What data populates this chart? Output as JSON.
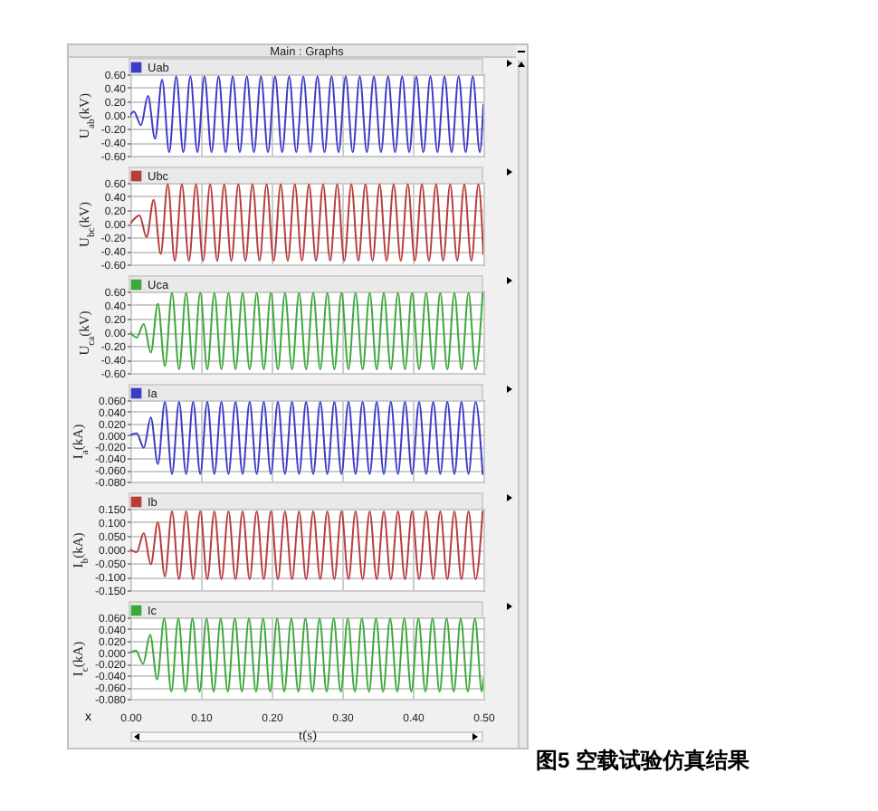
{
  "chart_data": [
    {
      "type": "line",
      "title": "Main : Graphs",
      "ylabel": "U$_{ab}$(kV)",
      "x": [
        0,
        0.005,
        0.015,
        0.025,
        0.035,
        0.045,
        0.055,
        0.065,
        0.075,
        0.085,
        0.095,
        0.105,
        0.115,
        0.125,
        0.135,
        0.145,
        0.155,
        0.165,
        0.175,
        0.185,
        0.195,
        0.205,
        0.215,
        0.225,
        0.235,
        0.245,
        0.255,
        0.265,
        0.275,
        0.285,
        0.295,
        0.305,
        0.315,
        0.325,
        0.335,
        0.345,
        0.355,
        0.365,
        0.375,
        0.385,
        0.395,
        0.405,
        0.415,
        0.425,
        0.435,
        0.445,
        0.455,
        0.465,
        0.475,
        0.485,
        0.495,
        0.5
      ],
      "series": [
        {
          "name": "Uab",
          "color": "#3c3cc8",
          "values": [
            0,
            0.05,
            -0.15,
            0.28,
            -0.35,
            0.52,
            -0.55,
            0.57,
            -0.55,
            0.57,
            -0.55,
            0.57,
            -0.55,
            0.57,
            -0.55,
            0.57,
            -0.55,
            0.57,
            -0.55,
            0.57,
            -0.55,
            0.57,
            -0.55,
            0.57,
            -0.55,
            0.57,
            -0.55,
            0.57,
            -0.55,
            0.57,
            -0.55,
            0.57,
            -0.55,
            0.57,
            -0.55,
            0.57,
            -0.55,
            0.57,
            -0.55,
            0.57,
            -0.55,
            0.57,
            -0.55,
            0.57,
            -0.55,
            0.57,
            -0.55,
            0.57,
            -0.55,
            0.57,
            -0.55,
            0.15
          ]
        }
      ],
      "xlim": [
        0,
        0.5
      ],
      "xticks": [
        {
          "value": 0,
          "label": null
        },
        {
          "value": 0.1,
          "label": null
        },
        {
          "value": 0.2,
          "label": null
        },
        {
          "value": 0.3,
          "label": null
        },
        {
          "value": 0.4,
          "label": null
        },
        {
          "value": 0.5,
          "label": null
        }
      ],
      "ylim": [
        -0.6,
        0.6
      ],
      "yticks": [
        {
          "value": -0.6,
          "label": "-0.60"
        },
        {
          "value": -0.4,
          "label": "-0.40"
        },
        {
          "value": -0.2,
          "label": "-0.20"
        },
        {
          "value": 0,
          "label": "0.00"
        },
        {
          "value": 0.2,
          "label": "0.20"
        },
        {
          "value": 0.4,
          "label": "0.40"
        },
        {
          "value": 0.6,
          "label": "0.60"
        }
      ],
      "grid": true,
      "legend": "top left",
      "tick_labels": "y"
    },
    {
      "type": "line",
      "ylabel": "U$_{bc}$(kV)",
      "x": [
        0,
        0.013,
        0.023,
        0.033,
        0.043,
        0.053,
        0.063,
        0.073,
        0.083,
        0.093,
        0.103,
        0.113,
        0.123,
        0.133,
        0.143,
        0.153,
        0.163,
        0.173,
        0.183,
        0.193,
        0.203,
        0.213,
        0.223,
        0.233,
        0.243,
        0.253,
        0.263,
        0.273,
        0.283,
        0.293,
        0.303,
        0.313,
        0.323,
        0.333,
        0.343,
        0.353,
        0.363,
        0.373,
        0.383,
        0.393,
        0.403,
        0.413,
        0.423,
        0.433,
        0.443,
        0.453,
        0.463,
        0.473,
        0.483,
        0.493,
        0.5
      ],
      "series": [
        {
          "name": "Ubc",
          "color": "#b83c3c",
          "values": [
            0,
            0.12,
            -0.2,
            0.35,
            -0.45,
            0.58,
            -0.55,
            0.58,
            -0.55,
            0.58,
            -0.55,
            0.58,
            -0.55,
            0.58,
            -0.55,
            0.58,
            -0.55,
            0.58,
            -0.55,
            0.58,
            -0.55,
            0.58,
            -0.55,
            0.58,
            -0.55,
            0.58,
            -0.55,
            0.58,
            -0.55,
            0.58,
            -0.55,
            0.58,
            -0.55,
            0.58,
            -0.55,
            0.58,
            -0.55,
            0.58,
            -0.55,
            0.58,
            -0.55,
            0.58,
            -0.55,
            0.58,
            -0.55,
            0.58,
            -0.55,
            0.58,
            -0.55,
            0.58,
            -0.45
          ]
        }
      ],
      "xlim": [
        0,
        0.5
      ],
      "xticks": [
        {
          "value": 0,
          "label": null
        },
        {
          "value": 0.1,
          "label": null
        },
        {
          "value": 0.2,
          "label": null
        },
        {
          "value": 0.3,
          "label": null
        },
        {
          "value": 0.4,
          "label": null
        },
        {
          "value": 0.5,
          "label": null
        }
      ],
      "ylim": [
        -0.6,
        0.6
      ],
      "yticks": [
        {
          "value": -0.6,
          "label": "-0.60"
        },
        {
          "value": -0.4,
          "label": "-0.40"
        },
        {
          "value": -0.2,
          "label": "-0.20"
        },
        {
          "value": 0,
          "label": "0.00"
        },
        {
          "value": 0.2,
          "label": "0.20"
        },
        {
          "value": 0.4,
          "label": "0.40"
        },
        {
          "value": 0.6,
          "label": "0.60"
        }
      ],
      "grid": true,
      "legend": "top left",
      "tick_labels": "y"
    },
    {
      "type": "line",
      "ylabel": "U$_{ca}$(kV)",
      "x": [
        0,
        0.009,
        0.019,
        0.029,
        0.039,
        0.049,
        0.059,
        0.069,
        0.079,
        0.089,
        0.099,
        0.109,
        0.119,
        0.129,
        0.139,
        0.149,
        0.159,
        0.169,
        0.179,
        0.189,
        0.199,
        0.209,
        0.219,
        0.229,
        0.239,
        0.249,
        0.259,
        0.269,
        0.279,
        0.289,
        0.299,
        0.309,
        0.319,
        0.329,
        0.339,
        0.349,
        0.359,
        0.369,
        0.379,
        0.389,
        0.399,
        0.409,
        0.419,
        0.429,
        0.439,
        0.449,
        0.459,
        0.469,
        0.479,
        0.489,
        0.499
      ],
      "series": [
        {
          "name": "Uca",
          "color": "#3ca83c",
          "values": [
            0,
            -0.08,
            0.12,
            -0.3,
            0.42,
            -0.5,
            0.58,
            -0.55,
            0.58,
            -0.55,
            0.58,
            -0.55,
            0.58,
            -0.55,
            0.58,
            -0.55,
            0.58,
            -0.55,
            0.58,
            -0.55,
            0.58,
            -0.55,
            0.58,
            -0.55,
            0.58,
            -0.55,
            0.58,
            -0.55,
            0.58,
            -0.55,
            0.58,
            -0.55,
            0.58,
            -0.55,
            0.58,
            -0.55,
            0.58,
            -0.55,
            0.58,
            -0.55,
            0.58,
            -0.55,
            0.58,
            -0.55,
            0.58,
            -0.55,
            0.58,
            -0.55,
            0.58,
            -0.55,
            0.58
          ]
        }
      ],
      "xlim": [
        0,
        0.5
      ],
      "xticks": [
        {
          "value": 0,
          "label": null
        },
        {
          "value": 0.1,
          "label": null
        },
        {
          "value": 0.2,
          "label": null
        },
        {
          "value": 0.3,
          "label": null
        },
        {
          "value": 0.4,
          "label": null
        },
        {
          "value": 0.5,
          "label": null
        }
      ],
      "ylim": [
        -0.6,
        0.6
      ],
      "yticks": [
        {
          "value": -0.6,
          "label": "-0.60"
        },
        {
          "value": -0.4,
          "label": "-0.40"
        },
        {
          "value": -0.2,
          "label": "-0.20"
        },
        {
          "value": 0,
          "label": "0.00"
        },
        {
          "value": 0.2,
          "label": "0.20"
        },
        {
          "value": 0.4,
          "label": "0.40"
        },
        {
          "value": 0.6,
          "label": "0.60"
        }
      ],
      "grid": true,
      "legend": "top left",
      "tick_labels": "y"
    },
    {
      "type": "line",
      "ylabel": "I$_{a}$(kA)",
      "x": [
        0,
        0.009,
        0.019,
        0.029,
        0.039,
        0.049,
        0.059,
        0.069,
        0.079,
        0.089,
        0.099,
        0.109,
        0.119,
        0.129,
        0.139,
        0.149,
        0.159,
        0.169,
        0.179,
        0.189,
        0.199,
        0.209,
        0.219,
        0.229,
        0.239,
        0.249,
        0.259,
        0.269,
        0.279,
        0.289,
        0.299,
        0.309,
        0.319,
        0.329,
        0.339,
        0.349,
        0.359,
        0.369,
        0.379,
        0.389,
        0.399,
        0.409,
        0.419,
        0.429,
        0.439,
        0.449,
        0.459,
        0.469,
        0.479,
        0.489,
        0.499
      ],
      "series": [
        {
          "name": "Ia",
          "color": "#3c3cc8",
          "values": [
            0,
            0.003,
            -0.022,
            0.03,
            -0.05,
            0.057,
            -0.067,
            0.057,
            -0.067,
            0.057,
            -0.067,
            0.057,
            -0.067,
            0.057,
            -0.067,
            0.057,
            -0.067,
            0.057,
            -0.067,
            0.057,
            -0.067,
            0.057,
            -0.067,
            0.057,
            -0.067,
            0.057,
            -0.067,
            0.057,
            -0.067,
            0.057,
            -0.067,
            0.057,
            -0.067,
            0.057,
            -0.067,
            0.057,
            -0.067,
            0.057,
            -0.067,
            0.057,
            -0.067,
            0.057,
            -0.067,
            0.057,
            -0.067,
            0.057,
            -0.067,
            0.057,
            -0.067,
            0.057,
            -0.067
          ]
        }
      ],
      "xlim": [
        0,
        0.5
      ],
      "xticks": [
        {
          "value": 0,
          "label": null
        },
        {
          "value": 0.1,
          "label": null
        },
        {
          "value": 0.2,
          "label": null
        },
        {
          "value": 0.3,
          "label": null
        },
        {
          "value": 0.4,
          "label": null
        },
        {
          "value": 0.5,
          "label": null
        }
      ],
      "ylim": [
        -0.08,
        0.06
      ],
      "yticks": [
        {
          "value": -0.08,
          "label": "-0.080"
        },
        {
          "value": -0.06,
          "label": "-0.060"
        },
        {
          "value": -0.04,
          "label": "-0.040"
        },
        {
          "value": -0.02,
          "label": "-0.020"
        },
        {
          "value": 0,
          "label": "0.000"
        },
        {
          "value": 0.02,
          "label": "0.020"
        },
        {
          "value": 0.04,
          "label": "0.040"
        },
        {
          "value": 0.06,
          "label": "0.060"
        }
      ],
      "grid": true,
      "legend": "top left",
      "tick_labels": "y"
    },
    {
      "type": "line",
      "ylabel": "I$_{b}$(kA)",
      "x": [
        0,
        0.009,
        0.019,
        0.029,
        0.039,
        0.049,
        0.059,
        0.069,
        0.079,
        0.089,
        0.099,
        0.109,
        0.119,
        0.129,
        0.139,
        0.149,
        0.159,
        0.169,
        0.179,
        0.189,
        0.199,
        0.209,
        0.219,
        0.229,
        0.239,
        0.249,
        0.259,
        0.269,
        0.279,
        0.289,
        0.299,
        0.309,
        0.319,
        0.329,
        0.339,
        0.349,
        0.359,
        0.369,
        0.379,
        0.389,
        0.399,
        0.409,
        0.419,
        0.429,
        0.439,
        0.449,
        0.459,
        0.469,
        0.479,
        0.489,
        0.499
      ],
      "series": [
        {
          "name": "Ib",
          "color": "#b83c3c",
          "values": [
            0,
            -0.01,
            0.06,
            -0.055,
            0.1,
            -0.1,
            0.14,
            -0.11,
            0.14,
            -0.11,
            0.14,
            -0.11,
            0.14,
            -0.11,
            0.14,
            -0.11,
            0.14,
            -0.11,
            0.14,
            -0.11,
            0.14,
            -0.11,
            0.14,
            -0.11,
            0.14,
            -0.11,
            0.14,
            -0.11,
            0.14,
            -0.11,
            0.14,
            -0.11,
            0.14,
            -0.11,
            0.14,
            -0.11,
            0.14,
            -0.11,
            0.14,
            -0.11,
            0.14,
            -0.11,
            0.14,
            -0.11,
            0.14,
            -0.11,
            0.14,
            -0.11,
            0.14,
            -0.11,
            0.14
          ]
        }
      ],
      "xlim": [
        0,
        0.5
      ],
      "xticks": [
        {
          "value": 0,
          "label": null
        },
        {
          "value": 0.1,
          "label": null
        },
        {
          "value": 0.2,
          "label": null
        },
        {
          "value": 0.3,
          "label": null
        },
        {
          "value": 0.4,
          "label": null
        },
        {
          "value": 0.5,
          "label": null
        }
      ],
      "ylim": [
        -0.15,
        0.15
      ],
      "yticks": [
        {
          "value": -0.15,
          "label": "-0.150"
        },
        {
          "value": -0.1,
          "label": "-0.100"
        },
        {
          "value": -0.05,
          "label": "-0.050"
        },
        {
          "value": 0,
          "label": "0.000"
        },
        {
          "value": 0.05,
          "label": "0.050"
        },
        {
          "value": 0.1,
          "label": "0.100"
        },
        {
          "value": 0.15,
          "label": "0.150"
        }
      ],
      "grid": true,
      "legend": "top left",
      "tick_labels": "y"
    },
    {
      "type": "line",
      "ylabel": "I$_{c}$(kA)",
      "xlabel": "t(s)",
      "x": [
        0,
        0.008,
        0.018,
        0.028,
        0.038,
        0.048,
        0.058,
        0.068,
        0.078,
        0.088,
        0.098,
        0.108,
        0.118,
        0.128,
        0.138,
        0.148,
        0.158,
        0.168,
        0.178,
        0.188,
        0.198,
        0.208,
        0.218,
        0.228,
        0.238,
        0.248,
        0.258,
        0.268,
        0.278,
        0.288,
        0.298,
        0.308,
        0.318,
        0.328,
        0.338,
        0.348,
        0.358,
        0.368,
        0.378,
        0.388,
        0.398,
        0.408,
        0.418,
        0.428,
        0.438,
        0.448,
        0.458,
        0.468,
        0.478,
        0.488,
        0.498,
        0.5
      ],
      "series": [
        {
          "name": "Ic",
          "color": "#3ca83c",
          "values": [
            0,
            0.003,
            -0.02,
            0.03,
            -0.047,
            0.058,
            -0.068,
            0.058,
            -0.068,
            0.058,
            -0.068,
            0.058,
            -0.068,
            0.058,
            -0.068,
            0.058,
            -0.068,
            0.058,
            -0.068,
            0.058,
            -0.068,
            0.058,
            -0.068,
            0.058,
            -0.068,
            0.058,
            -0.068,
            0.058,
            -0.068,
            0.058,
            -0.068,
            0.058,
            -0.068,
            0.058,
            -0.068,
            0.058,
            -0.068,
            0.058,
            -0.068,
            0.058,
            -0.068,
            0.058,
            -0.068,
            0.058,
            -0.068,
            0.058,
            -0.068,
            0.058,
            -0.068,
            0.058,
            -0.068,
            -0.045
          ]
        }
      ],
      "xlim": [
        0,
        0.5
      ],
      "xticks": [
        {
          "value": 0,
          "label": "0.00"
        },
        {
          "value": 0.1,
          "label": "0.10"
        },
        {
          "value": 0.2,
          "label": "0.20"
        },
        {
          "value": 0.3,
          "label": "0.30"
        },
        {
          "value": 0.4,
          "label": "0.40"
        },
        {
          "value": 0.5,
          "label": "0.50"
        }
      ],
      "ylim": [
        -0.08,
        0.06
      ],
      "yticks": [
        {
          "value": -0.08,
          "label": "-0.080"
        },
        {
          "value": -0.06,
          "label": "-0.060"
        },
        {
          "value": -0.04,
          "label": "-0.040"
        },
        {
          "value": -0.02,
          "label": "-0.020"
        },
        {
          "value": 0,
          "label": "0.000"
        },
        {
          "value": 0.02,
          "label": "0.020"
        },
        {
          "value": 0.04,
          "label": "0.040"
        },
        {
          "value": 0.06,
          "label": "0.060"
        }
      ],
      "grid": true,
      "legend": "top left",
      "annotations": [
        "x",
        "图5 空载试验仿真结果"
      ]
    }
  ]
}
